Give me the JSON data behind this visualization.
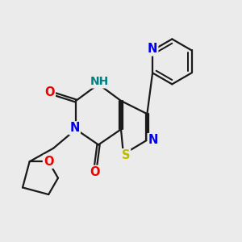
{
  "bg_color": "#ebebeb",
  "bond_color": "#1a1a1a",
  "bond_width": 1.6,
  "dbo": 0.055,
  "atom_colors": {
    "N": "#0000ee",
    "O": "#ee0000",
    "S": "#bbbb00",
    "NH": "#008080"
  },
  "fs": 10.5
}
